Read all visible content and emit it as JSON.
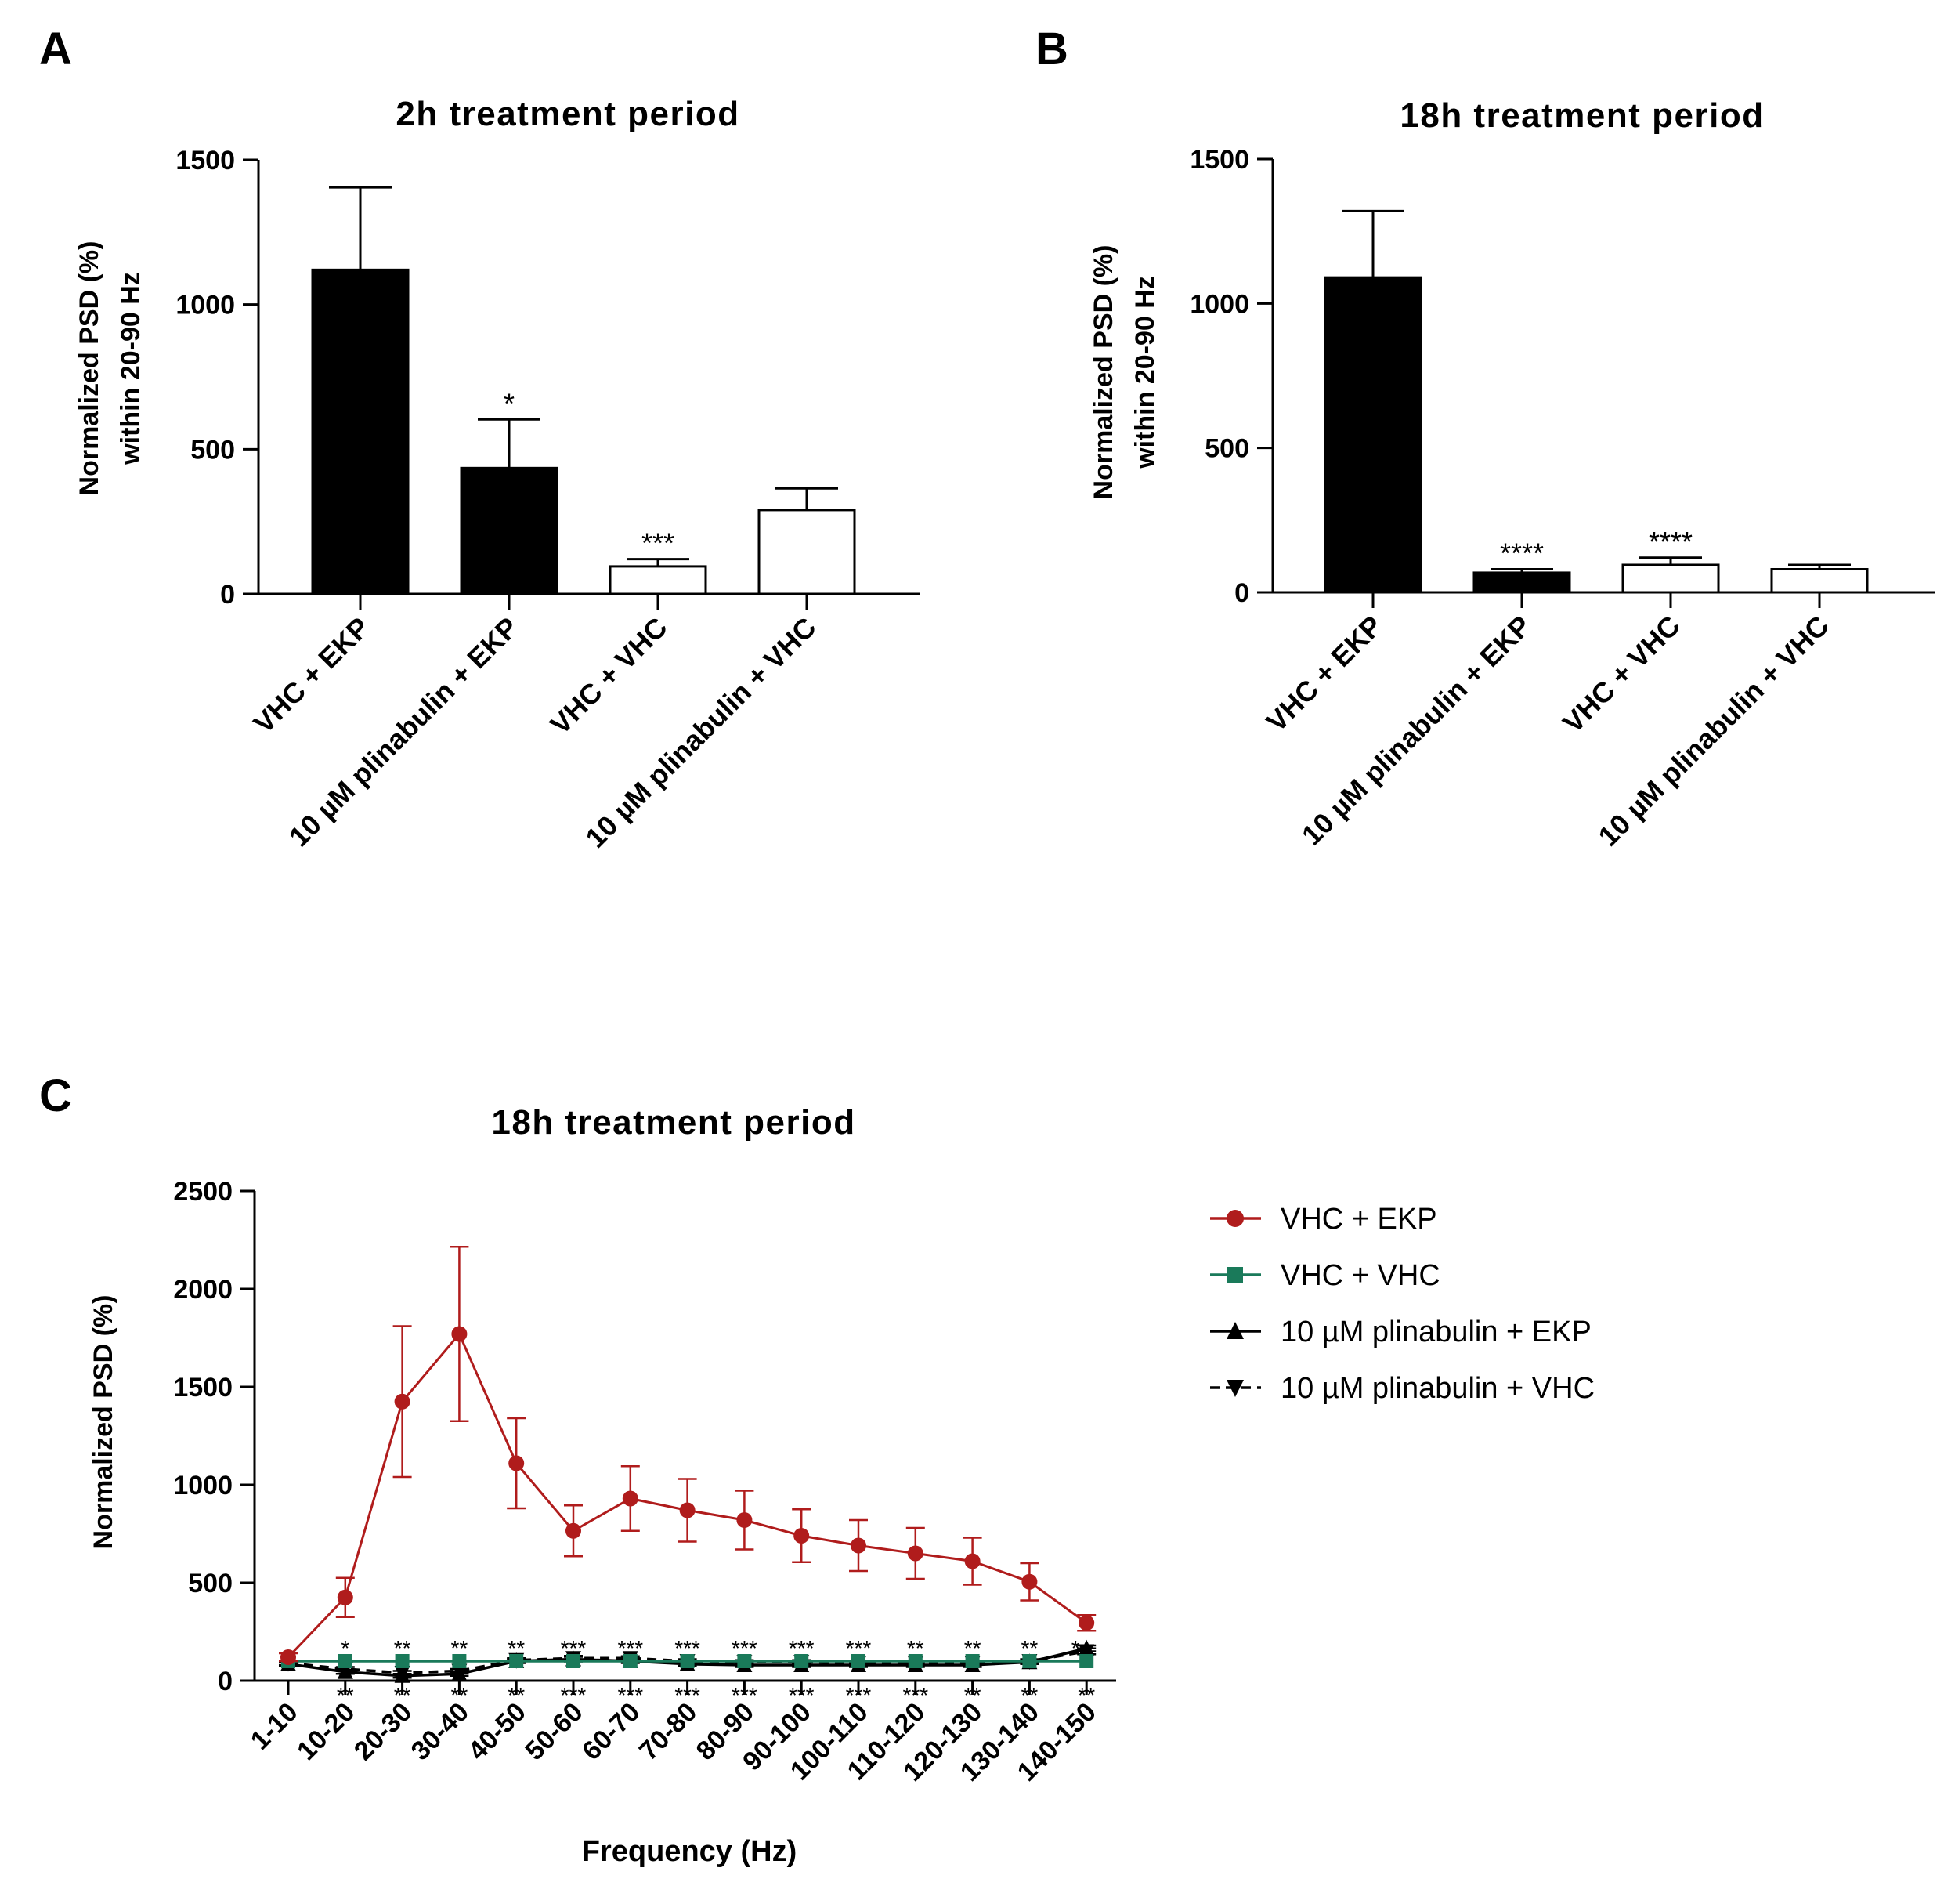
{
  "panels": {
    "a": {
      "letter": "A"
    },
    "b": {
      "letter": "B"
    },
    "c": {
      "letter": "C"
    }
  },
  "colors": {
    "vhc_ekp": "#b01c1c",
    "vhc_vhc": "#1a7a5a",
    "pli_ekp": "#000000",
    "pli_vhc": "#000000"
  },
  "chart_data": [
    {
      "id": "A",
      "type": "bar",
      "title": "2h treatment period",
      "ylabel_lines": [
        "Normalized PSD (%)",
        "within 20-90 Hz"
      ],
      "ylim": [
        0,
        1500
      ],
      "yticks": [
        0,
        500,
        1000,
        1500
      ],
      "categories": [
        "VHC + EKP",
        "10 µM plinabulin + EKP",
        "VHC + VHC",
        "10 µM plinabulin + VHC"
      ],
      "values": [
        1120,
        435,
        95,
        290
      ],
      "errors": [
        285,
        168,
        25,
        75
      ],
      "fills": [
        "black",
        "black",
        "white",
        "white"
      ],
      "significance": [
        "",
        "*",
        "***",
        ""
      ]
    },
    {
      "id": "B",
      "type": "bar",
      "title": "18h treatment period",
      "ylabel_lines": [
        "Normalized PSD (%)",
        "within 20-90 Hz"
      ],
      "ylim": [
        0,
        1500
      ],
      "yticks": [
        0,
        500,
        1000,
        1500
      ],
      "categories": [
        "VHC + EKP",
        "10 µM plinabulin + EKP",
        "VHC + VHC",
        "10 µM plinabulin + VHC"
      ],
      "values": [
        1090,
        68,
        95,
        80
      ],
      "errors": [
        230,
        12,
        25,
        15
      ],
      "fills": [
        "black",
        "black",
        "white",
        "white"
      ],
      "significance": [
        "",
        "****",
        "****",
        ""
      ]
    },
    {
      "id": "C",
      "type": "line",
      "title": "18h treatment period",
      "xlabel": "Frequency (Hz)",
      "ylabel": "Normalized PSD (%)",
      "ylim": [
        0,
        2500
      ],
      "yticks": [
        0,
        500,
        1000,
        1500,
        2000,
        2500
      ],
      "categories": [
        "1-10",
        "10-20",
        "20-30",
        "30-40",
        "40-50",
        "50-60",
        "60-70",
        "70-80",
        "80-90",
        "90-100",
        "100-110",
        "110-120",
        "120-130",
        "130-140",
        "140-150"
      ],
      "series": [
        {
          "name": "VHC + EKP",
          "color_key": "vhc_ekp",
          "marker": "circle",
          "dashed": false,
          "values": [
            120,
            425,
            1425,
            1770,
            1110,
            765,
            930,
            870,
            820,
            740,
            690,
            650,
            610,
            505,
            295
          ],
          "errors": [
            20,
            100,
            385,
            445,
            230,
            130,
            165,
            160,
            150,
            135,
            130,
            130,
            120,
            95,
            40
          ]
        },
        {
          "name": "VHC + VHC",
          "color_key": "vhc_vhc",
          "marker": "square",
          "dashed": false,
          "values": [
            100,
            100,
            100,
            100,
            100,
            100,
            100,
            100,
            100,
            100,
            100,
            100,
            100,
            100,
            100
          ],
          "errors": [
            0,
            0,
            0,
            0,
            0,
            0,
            0,
            0,
            0,
            0,
            0,
            0,
            0,
            0,
            0
          ]
        },
        {
          "name": "10 µM plinabulin + EKP",
          "color_key": "pli_ekp",
          "marker": "triangle-up",
          "dashed": false,
          "values": [
            85,
            45,
            25,
            35,
            100,
            110,
            100,
            85,
            80,
            80,
            80,
            80,
            80,
            95,
            165
          ],
          "errors": [
            10,
            10,
            10,
            10,
            10,
            12,
            10,
            10,
            10,
            10,
            10,
            10,
            10,
            10,
            15
          ]
        },
        {
          "name": "10 µM plinabulin + VHC",
          "color_key": "pli_vhc",
          "marker": "triangle-down",
          "dashed": true,
          "values": [
            90,
            60,
            40,
            50,
            105,
            115,
            115,
            100,
            95,
            95,
            90,
            90,
            90,
            100,
            150
          ],
          "errors": [
            10,
            10,
            10,
            10,
            10,
            12,
            10,
            10,
            10,
            10,
            10,
            10,
            10,
            10,
            15
          ]
        }
      ],
      "significance_top": [
        "",
        "*",
        "**",
        "**",
        "**",
        "***",
        "***",
        "***",
        "***",
        "***",
        "***",
        "**",
        "**",
        "**",
        "*"
      ],
      "significance_bottom": [
        "",
        "**",
        "**",
        "**",
        "**",
        "***",
        "***",
        "***",
        "***",
        "***",
        "***",
        "***",
        "**",
        "**",
        "**"
      ]
    }
  ]
}
